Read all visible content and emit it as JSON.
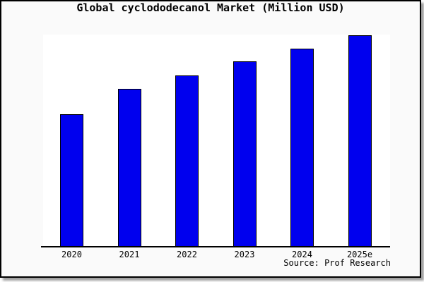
{
  "title": "Global cyclododecanol Market (Million USD)",
  "source_note": "Source: Prof Research",
  "colors": {
    "card_background": "#fafafa",
    "plot_background": "#ffffff",
    "bar_fill": "#0000ee",
    "bar_border": "#000000",
    "axis": "#000000",
    "card_border": "#000000"
  },
  "chart_data": {
    "type": "bar",
    "title": "Global cyclododecanol Market (Million USD)",
    "categories": [
      "2020",
      "2021",
      "2022",
      "2023",
      "2024",
      "2025e"
    ],
    "values": [
      62.9,
      74.9,
      81.2,
      87.7,
      93.7,
      100
    ],
    "xlabel": "",
    "ylabel": "",
    "ylim": [
      0,
      100.4
    ],
    "grid": false,
    "legend": null,
    "y_axis_ticks": [],
    "value_note": "No y-axis tick labels shown in chart; values are relative bar heights normalized so the tallest (2025e) = 100."
  }
}
